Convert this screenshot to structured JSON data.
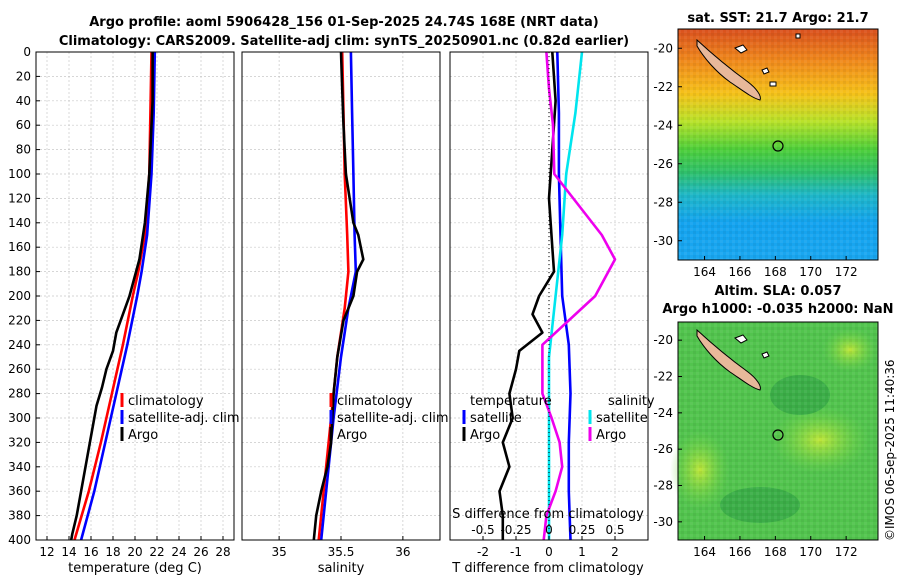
{
  "header": {
    "title_line1": "Argo profile: aoml 5906428_156 01-Sep-2025 24.74S 168E (NRT data)",
    "title_line2": "Climatology: CARS2009. Satellite-adj clim: synTS_20250901.nc (0.82d earlier)"
  },
  "timestamp": "©IMOS 06-Sep-2025 11:40:36",
  "colors": {
    "climatology": "#ff0000",
    "satellite": "#0000ff",
    "argo": "#000000",
    "sat_salinity": "#00e5ee",
    "argo_salinity": "#ee00ee"
  },
  "chart_data": [
    {
      "id": "temperature",
      "type": "line",
      "xlabel": "temperature (deg C)",
      "ylim": [
        0,
        400
      ],
      "xlim": [
        11,
        29
      ],
      "y_ticks": [
        "0",
        "20",
        "40",
        "60",
        "80",
        "100",
        "120",
        "140",
        "160",
        "180",
        "200",
        "220",
        "240",
        "260",
        "280",
        "300",
        "320",
        "340",
        "360",
        "380",
        "400"
      ],
      "x_ticks": [
        12,
        14,
        16,
        18,
        20,
        22,
        24,
        26,
        28
      ],
      "x_tick_labels": [
        "12",
        "14",
        "16",
        "18",
        "20",
        "22",
        "24",
        "26",
        "28"
      ],
      "legend": [
        "climatology",
        "satellite-adj. clim",
        "Argo"
      ],
      "series": [
        {
          "name": "climatology",
          "depth": [
            0,
            50,
            100,
            150,
            180,
            200,
            240,
            280,
            320,
            360,
            400
          ],
          "values": [
            21.5,
            21.4,
            21.3,
            20.9,
            20.3,
            19.8,
            18.9,
            17.9,
            16.9,
            15.8,
            14.5
          ]
        },
        {
          "name": "satellite-adj. clim",
          "depth": [
            0,
            50,
            100,
            150,
            180,
            200,
            240,
            280,
            320,
            360,
            400
          ],
          "values": [
            21.8,
            21.7,
            21.5,
            21.1,
            20.6,
            20.2,
            19.3,
            18.3,
            17.3,
            16.3,
            15.1
          ]
        },
        {
          "name": "Argo",
          "depth": [
            0,
            20,
            40,
            60,
            100,
            140,
            170,
            200,
            215,
            230,
            245,
            260,
            275,
            290,
            305,
            320,
            335,
            350,
            365,
            380,
            395,
            400
          ],
          "values": [
            21.6,
            21.6,
            21.6,
            21.5,
            21.3,
            20.9,
            20.4,
            19.5,
            18.9,
            18.3,
            18.0,
            17.4,
            17.0,
            16.5,
            16.2,
            15.9,
            15.6,
            15.3,
            15.0,
            14.7,
            14.3,
            14.2
          ]
        }
      ]
    },
    {
      "id": "salinity",
      "type": "line",
      "xlabel": "salinity",
      "ylim": [
        0,
        400
      ],
      "xlim": [
        34.7,
        36.3
      ],
      "x_ticks": [
        35,
        35.5,
        36
      ],
      "x_tick_labels": [
        "35",
        "35.5",
        "36"
      ],
      "legend": [
        "climatology",
        "satellite-adj. clim",
        "Argo"
      ],
      "series": [
        {
          "name": "climatology",
          "depth": [
            0,
            50,
            100,
            150,
            180,
            210,
            250,
            300,
            350,
            400
          ],
          "values": [
            35.51,
            35.52,
            35.53,
            35.55,
            35.56,
            35.53,
            35.47,
            35.42,
            35.37,
            35.32
          ]
        },
        {
          "name": "satellite-adj. clim",
          "depth": [
            0,
            50,
            100,
            150,
            180,
            210,
            250,
            300,
            350,
            400
          ],
          "values": [
            35.58,
            35.59,
            35.6,
            35.61,
            35.62,
            35.56,
            35.5,
            35.44,
            35.39,
            35.34
          ]
        },
        {
          "name": "Argo",
          "depth": [
            0,
            30,
            60,
            100,
            140,
            150,
            160,
            170,
            180,
            200,
            220,
            250,
            280,
            300,
            320,
            340,
            360,
            380,
            400
          ],
          "values": [
            35.5,
            35.51,
            35.52,
            35.54,
            35.6,
            35.64,
            35.66,
            35.68,
            35.63,
            35.6,
            35.52,
            35.47,
            35.44,
            35.43,
            35.42,
            35.39,
            35.34,
            35.3,
            35.28
          ]
        }
      ]
    },
    {
      "id": "difference",
      "type": "line",
      "xlabel": "T difference from climatology",
      "top_xlabel": "S difference from climatology",
      "ylim": [
        0,
        400
      ],
      "xlim": [
        -3,
        3
      ],
      "x_ticks": [
        -2,
        -1,
        0,
        1,
        2
      ],
      "x_tick_labels": [
        "-2",
        "-1",
        "0",
        "1",
        "2"
      ],
      "s_ticks": [
        -0.5,
        -0.25,
        0,
        0.25,
        0.5
      ],
      "s_tick_labels": [
        "-0.5",
        "-0.25",
        "0",
        "0.25",
        "0.5"
      ],
      "legend_temperature_title": "temperature",
      "legend_salinity_title": "salinity",
      "legend": [
        "satellite",
        "Argo",
        "satellite",
        "Argo"
      ],
      "series": [
        {
          "name": "T satellite",
          "depth": [
            0,
            50,
            100,
            150,
            200,
            240,
            280,
            320,
            360,
            400
          ],
          "values": [
            0.25,
            0.3,
            0.3,
            0.35,
            0.4,
            0.6,
            0.65,
            0.6,
            0.6,
            0.65
          ]
        },
        {
          "name": "T Argo",
          "depth": [
            0,
            40,
            80,
            120,
            160,
            180,
            200,
            215,
            230,
            245,
            260,
            280,
            300,
            320,
            340,
            360,
            380,
            400
          ],
          "values": [
            0.1,
            0.2,
            0.1,
            0,
            0.1,
            0.15,
            -0.3,
            -0.5,
            -0.2,
            -0.9,
            -1.0,
            -1.2,
            -1.1,
            -1.4,
            -1.2,
            -1.5,
            -1.4,
            -1.4
          ]
        },
        {
          "name": "S satellite",
          "depth": [
            0,
            50,
            100,
            150,
            200,
            250,
            300,
            350,
            400
          ],
          "values": [
            0.25,
            0.2,
            0.13,
            0.1,
            0.05,
            0,
            0,
            0,
            0
          ]
        },
        {
          "name": "S Argo",
          "depth": [
            0,
            30,
            60,
            100,
            150,
            170,
            200,
            240,
            280,
            300,
            320,
            340,
            360,
            380,
            400
          ],
          "values": [
            -0.02,
            0,
            0.03,
            0.04,
            0.4,
            0.5,
            0.35,
            -0.05,
            -0.05,
            0.02,
            0.08,
            0.1,
            0.05,
            -0.02,
            -0.04
          ]
        }
      ]
    }
  ],
  "maps": {
    "sst": {
      "title": "sat. SST: 21.7 Argo: 21.7"
    },
    "sla": {
      "title_line1": "Altim. SLA: 0.057",
      "title_line2": "Argo h1000: -0.035 h2000: NaN"
    },
    "lon_ticks": [
      "164",
      "166",
      "168",
      "170",
      "172"
    ],
    "lat_ticks": [
      "-20",
      "-22",
      "-24",
      "-26",
      "-28",
      "-30"
    ]
  }
}
